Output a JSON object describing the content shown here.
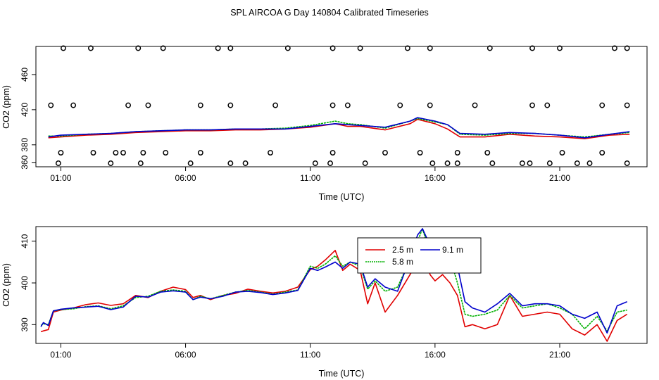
{
  "figure_title": "SPL AIRCOA G  Day 140804  Calibrated Timeseries",
  "colors": {
    "s2_5": "#e00000",
    "s5_8": "#00b000",
    "s9_1": "#0000cc",
    "frame": "#000000",
    "flags": "#000000"
  },
  "chart_data": [
    {
      "type": "line+scatter",
      "title": "",
      "xlabel": "Time (UTC)",
      "ylabel": "CO2 (ppm)",
      "xlim": [
        0.0,
        24.5
      ],
      "ylim": [
        355,
        492
      ],
      "x_ticks": [
        1,
        6,
        11,
        16,
        21
      ],
      "x_tick_labels": [
        "01:00",
        "06:00",
        "11:00",
        "16:00",
        "21:00"
      ],
      "y_ticks": [
        360,
        380,
        420,
        460
      ],
      "y_tick_labels": [
        "360",
        "380",
        "420",
        "460"
      ],
      "grid": false,
      "legend": null,
      "series": [
        {
          "key": "s2_5",
          "x": [
            0.5,
            1,
            2,
            3,
            4,
            5,
            6,
            7,
            8,
            9,
            10,
            11,
            12,
            12.5,
            13,
            14,
            15,
            15.3,
            16,
            16.5,
            17,
            18,
            19,
            20,
            21,
            22,
            23,
            23.8
          ],
          "values": [
            388,
            389,
            391,
            392,
            394,
            395,
            396,
            396,
            397,
            397,
            398,
            400,
            404,
            401,
            401,
            397,
            404,
            409,
            404,
            398,
            389,
            389,
            392,
            390,
            389,
            387,
            391,
            392
          ]
        },
        {
          "key": "s5_8",
          "x": [
            0.5,
            1,
            2,
            3,
            4,
            5,
            6,
            7,
            8,
            9,
            10,
            11,
            12,
            12.5,
            13,
            14,
            15,
            15.3,
            16,
            16.5,
            17,
            18,
            19,
            20,
            21,
            22,
            23,
            23.8
          ],
          "values": [
            390,
            390,
            392,
            393,
            395,
            396,
            397,
            397,
            398,
            398,
            399,
            402,
            407,
            404,
            403,
            399,
            407,
            410,
            406,
            403,
            392,
            391,
            393,
            393,
            391,
            389,
            392,
            394
          ]
        },
        {
          "key": "s9_1",
          "x": [
            0.5,
            1,
            2,
            3,
            4,
            5,
            6,
            7,
            8,
            9,
            10,
            11,
            12,
            12.5,
            13,
            14,
            15,
            15.3,
            16,
            16.5,
            17,
            18,
            19,
            20,
            21,
            22,
            23,
            23.8
          ],
          "values": [
            389,
            391,
            392,
            393,
            395,
            396,
            397,
            397,
            398,
            398,
            398,
            401,
            404,
            403,
            402,
            400,
            407,
            411,
            407,
            403,
            393,
            392,
            394,
            393,
            391,
            388,
            392,
            395
          ]
        }
      ],
      "flag_points": {
        "x": [
          1.1,
          2.2,
          4.1,
          5.1,
          7.3,
          7.8,
          10.1,
          11.9,
          13.0,
          14.9,
          15.8,
          18.2,
          19.9,
          21.0,
          23.2,
          23.7,
          0.6,
          1.5,
          3.7,
          4.5,
          6.6,
          7.8,
          9.6,
          11.9,
          12.5,
          14.6,
          15.8,
          17.6,
          19.9,
          20.5,
          22.7,
          23.7,
          0.9,
          3.0,
          4.2,
          6.2,
          7.8,
          8.4,
          11.2,
          11.8,
          13.2,
          15.9,
          16.5,
          16.9,
          18.3,
          19.5,
          19.8,
          20.6,
          21.7,
          22.2,
          23.7,
          1.0,
          2.3,
          3.2,
          3.5,
          4.3,
          5.2,
          6.6,
          9.4,
          11.9,
          14.0,
          15.4,
          16.9,
          18.1,
          21.1,
          22.7
        ],
        "values": [
          490,
          490,
          490,
          490,
          490,
          490,
          490,
          490,
          490,
          490,
          490,
          490,
          490,
          490,
          490,
          490,
          425,
          425,
          425,
          425,
          425,
          425,
          425,
          425,
          425,
          425,
          425,
          425,
          425,
          425,
          425,
          425,
          359,
          359,
          359,
          359,
          359,
          359,
          359,
          359,
          359,
          359,
          359,
          359,
          359,
          359,
          359,
          359,
          359,
          359,
          359,
          371,
          371,
          371,
          371,
          371,
          371,
          371,
          371,
          371,
          371,
          371,
          371,
          371,
          371,
          371
        ]
      }
    },
    {
      "type": "line",
      "title": "",
      "xlabel": "Time (UTC)",
      "ylabel": "CO2 (ppm)",
      "xlim": [
        0.0,
        24.5
      ],
      "ylim": [
        385.5,
        413.5
      ],
      "x_ticks": [
        1,
        6,
        11,
        16,
        21
      ],
      "x_tick_labels": [
        "01:00",
        "06:00",
        "11:00",
        "16:00",
        "21:00"
      ],
      "y_ticks": [
        390,
        400,
        410
      ],
      "y_tick_labels": [
        "390",
        "400",
        "410"
      ],
      "grid": false,
      "legend": {
        "placement": "top-center",
        "entries": [
          {
            "label": "2.5 m",
            "key": "s2_5"
          },
          {
            "label": "5.8 m",
            "key": "s5_8"
          },
          {
            "label": "9.1 m",
            "key": "s9_1"
          }
        ]
      },
      "series": [
        {
          "key": "s2_5",
          "x": [
            0.2,
            0.3,
            0.5,
            0.7,
            1.0,
            1.5,
            2.0,
            2.5,
            3.0,
            3.5,
            4.0,
            4.5,
            5.0,
            5.5,
            6.0,
            6.3,
            6.6,
            7.0,
            7.5,
            8.0,
            8.5,
            9.0,
            9.5,
            10.0,
            10.5,
            11.0,
            11.3,
            11.6,
            12.0,
            12.3,
            12.6,
            13.0,
            13.3,
            13.6,
            14.0,
            14.5,
            15.0,
            15.3,
            15.5,
            15.8,
            16.0,
            16.3,
            16.6,
            16.9,
            17.2,
            17.5,
            18.0,
            18.5,
            19.0,
            19.5,
            20.0,
            20.5,
            21.0,
            21.5,
            22.0,
            22.5,
            22.9,
            23.3,
            23.7
          ],
          "values": [
            388.3,
            388.5,
            388.8,
            393.0,
            393.5,
            394.0,
            394.8,
            395.2,
            394.6,
            395.0,
            397.0,
            396.5,
            398.0,
            399.0,
            398.4,
            396.5,
            397.0,
            396.0,
            397.0,
            397.5,
            398.5,
            398.0,
            397.6,
            398.0,
            399.0,
            403.2,
            404.0,
            405.5,
            407.8,
            403.0,
            404.5,
            403.0,
            395.0,
            400.0,
            393.0,
            397.0,
            402.0,
            405.0,
            409.0,
            402.0,
            400.5,
            402.0,
            400.0,
            397.0,
            389.5,
            390.0,
            389.0,
            390.0,
            397.0,
            392.0,
            392.5,
            393.0,
            392.5,
            389.0,
            387.5,
            390.0,
            386.0,
            391.0,
            392.5
          ]
        },
        {
          "key": "s5_8",
          "x": [
            0.2,
            0.3,
            0.5,
            0.7,
            1.0,
            1.5,
            2.0,
            2.5,
            3.0,
            3.5,
            4.0,
            4.5,
            5.0,
            5.5,
            6.0,
            6.3,
            6.6,
            7.0,
            7.5,
            8.0,
            8.5,
            9.0,
            9.5,
            10.0,
            10.5,
            11.0,
            11.3,
            11.6,
            12.0,
            12.3,
            12.6,
            13.0,
            13.3,
            13.6,
            14.0,
            14.5,
            15.0,
            15.3,
            15.5,
            15.8,
            16.0,
            16.3,
            16.6,
            16.9,
            17.2,
            17.5,
            18.0,
            18.5,
            19.0,
            19.5,
            20.0,
            20.5,
            21.0,
            21.5,
            22.0,
            22.5,
            22.9,
            23.3,
            23.7
          ],
          "values": [
            389.8,
            390.2,
            390.0,
            393.3,
            393.6,
            393.8,
            394.3,
            394.5,
            393.8,
            394.5,
            396.5,
            396.8,
            398.0,
            398.3,
            398.0,
            396.0,
            396.8,
            396.2,
            397.0,
            397.8,
            398.2,
            397.8,
            397.3,
            397.8,
            398.3,
            404.0,
            403.5,
            404.5,
            406.5,
            404.0,
            405.0,
            404.0,
            398.5,
            400.5,
            398.0,
            399.0,
            405.5,
            410.0,
            413.0,
            407.0,
            406.0,
            407.5,
            406.0,
            400.0,
            392.5,
            392.0,
            392.5,
            393.5,
            397.0,
            394.0,
            394.5,
            395.0,
            394.0,
            392.5,
            389.0,
            392.0,
            388.5,
            393.0,
            393.5
          ]
        },
        {
          "key": "s9_1",
          "x": [
            0.2,
            0.3,
            0.5,
            0.7,
            1.0,
            1.5,
            2.0,
            2.5,
            3.0,
            3.5,
            4.0,
            4.5,
            5.0,
            5.5,
            6.0,
            6.3,
            6.6,
            7.0,
            7.5,
            8.0,
            8.5,
            9.0,
            9.5,
            10.0,
            10.5,
            11.0,
            11.3,
            11.6,
            12.0,
            12.3,
            12.6,
            13.0,
            13.3,
            13.6,
            14.0,
            14.5,
            15.0,
            15.3,
            15.5,
            15.8,
            16.0,
            16.3,
            16.6,
            16.9,
            17.2,
            17.5,
            18.0,
            18.5,
            19.0,
            19.5,
            20.0,
            20.5,
            21.0,
            21.5,
            22.0,
            22.5,
            22.9,
            23.3,
            23.7
          ],
          "values": [
            389.5,
            390.5,
            389.8,
            393.3,
            393.7,
            394.0,
            394.2,
            394.4,
            393.6,
            394.2,
            396.8,
            396.6,
            397.8,
            398.1,
            397.8,
            396.0,
            396.6,
            396.2,
            396.8,
            397.8,
            398.0,
            397.7,
            397.2,
            397.6,
            398.2,
            403.5,
            403.0,
            403.8,
            405.0,
            403.5,
            405.0,
            404.5,
            399.0,
            401.0,
            399.0,
            398.0,
            406.0,
            411.5,
            413.0,
            409.0,
            406.5,
            409.5,
            407.0,
            404.0,
            395.5,
            394.0,
            393.0,
            395.0,
            397.5,
            394.5,
            395.0,
            395.0,
            394.5,
            392.5,
            391.5,
            393.0,
            388.0,
            394.5,
            395.5
          ]
        }
      ]
    }
  ]
}
